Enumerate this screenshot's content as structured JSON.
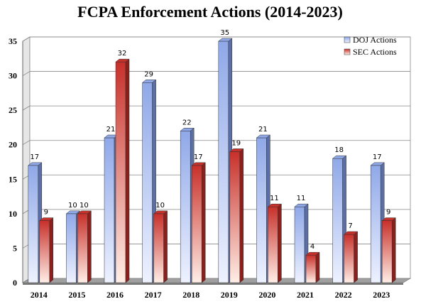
{
  "chart_data": {
    "type": "bar",
    "title": "FCPA Enforcement Actions (2014-2023)",
    "xlabel": "",
    "ylabel": "",
    "categories": [
      "2014",
      "2015",
      "2016",
      "2017",
      "2018",
      "2019",
      "2020",
      "2021",
      "2022",
      "2023"
    ],
    "series": [
      {
        "name": "DOJ Actions",
        "values": [
          17,
          10,
          21,
          29,
          22,
          35,
          21,
          11,
          18,
          17
        ],
        "color_top": "#8fa8e8",
        "color_bottom": "#eef2ff",
        "color_side": "#5a6fa8"
      },
      {
        "name": "SEC Actions",
        "values": [
          9,
          10,
          32,
          10,
          17,
          19,
          11,
          4,
          7,
          9
        ],
        "color_top": "#c8302a",
        "color_bottom": "#ffeee6",
        "color_side": "#8e1e1a"
      }
    ],
    "ylim": [
      0,
      35
    ],
    "yticks": [
      0,
      5,
      10,
      15,
      20,
      25,
      30,
      35
    ],
    "grid": true,
    "legend_position": "top-right"
  }
}
